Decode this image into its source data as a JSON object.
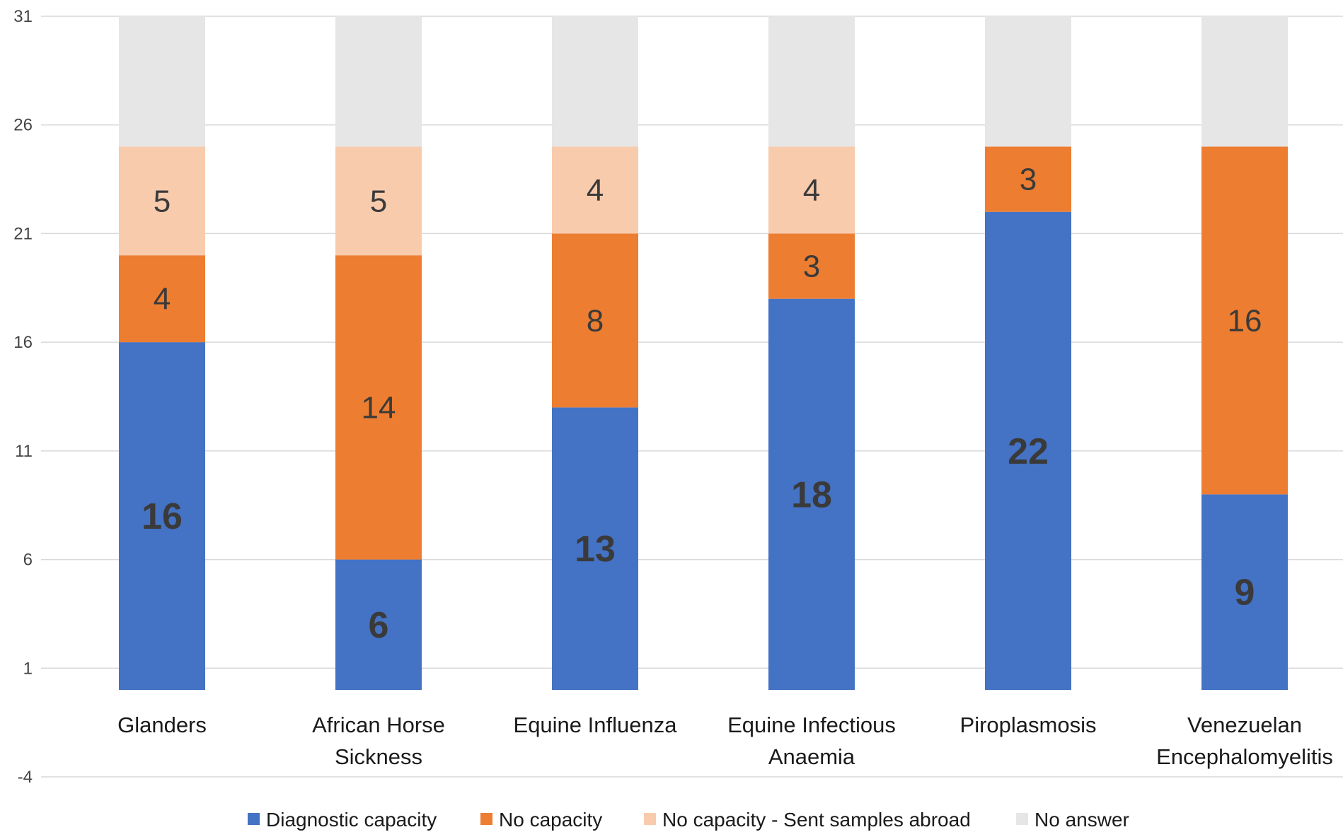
{
  "chart_data": {
    "type": "bar",
    "stacked": true,
    "title": "",
    "xlabel": "",
    "ylabel": "",
    "ylim": [
      -4,
      31
    ],
    "yticks": [
      31,
      26,
      21,
      16,
      11,
      6,
      1,
      -4
    ],
    "baseline": 0,
    "grid": true,
    "legend_position": "bottom",
    "categories": [
      [
        "Glanders"
      ],
      [
        "African Horse",
        "Sickness"
      ],
      [
        "Equine Influenza"
      ],
      [
        "Equine Infectious",
        "Anaemia"
      ],
      [
        "Piroplasmosis"
      ],
      [
        "Venezuelan",
        "Encephalomyelitis"
      ]
    ],
    "series": [
      {
        "name": "Diagnostic capacity",
        "color": "#4472C4",
        "values": [
          16,
          6,
          13,
          18,
          22,
          9
        ],
        "label_style": "bold"
      },
      {
        "name": "No capacity",
        "color": "#ED7D31",
        "values": [
          4,
          14,
          8,
          3,
          3,
          16
        ],
        "label_style": "regular"
      },
      {
        "name": "No capacity - Sent samples abroad",
        "color": "#F8CBAD",
        "values": [
          5,
          5,
          4,
          4,
          null,
          null
        ],
        "label_style": "regular"
      },
      {
        "name": "No answer",
        "color": "#E7E6E6",
        "values": [
          6,
          6,
          6,
          6,
          6,
          6
        ],
        "label_style": "hidden"
      }
    ]
  }
}
